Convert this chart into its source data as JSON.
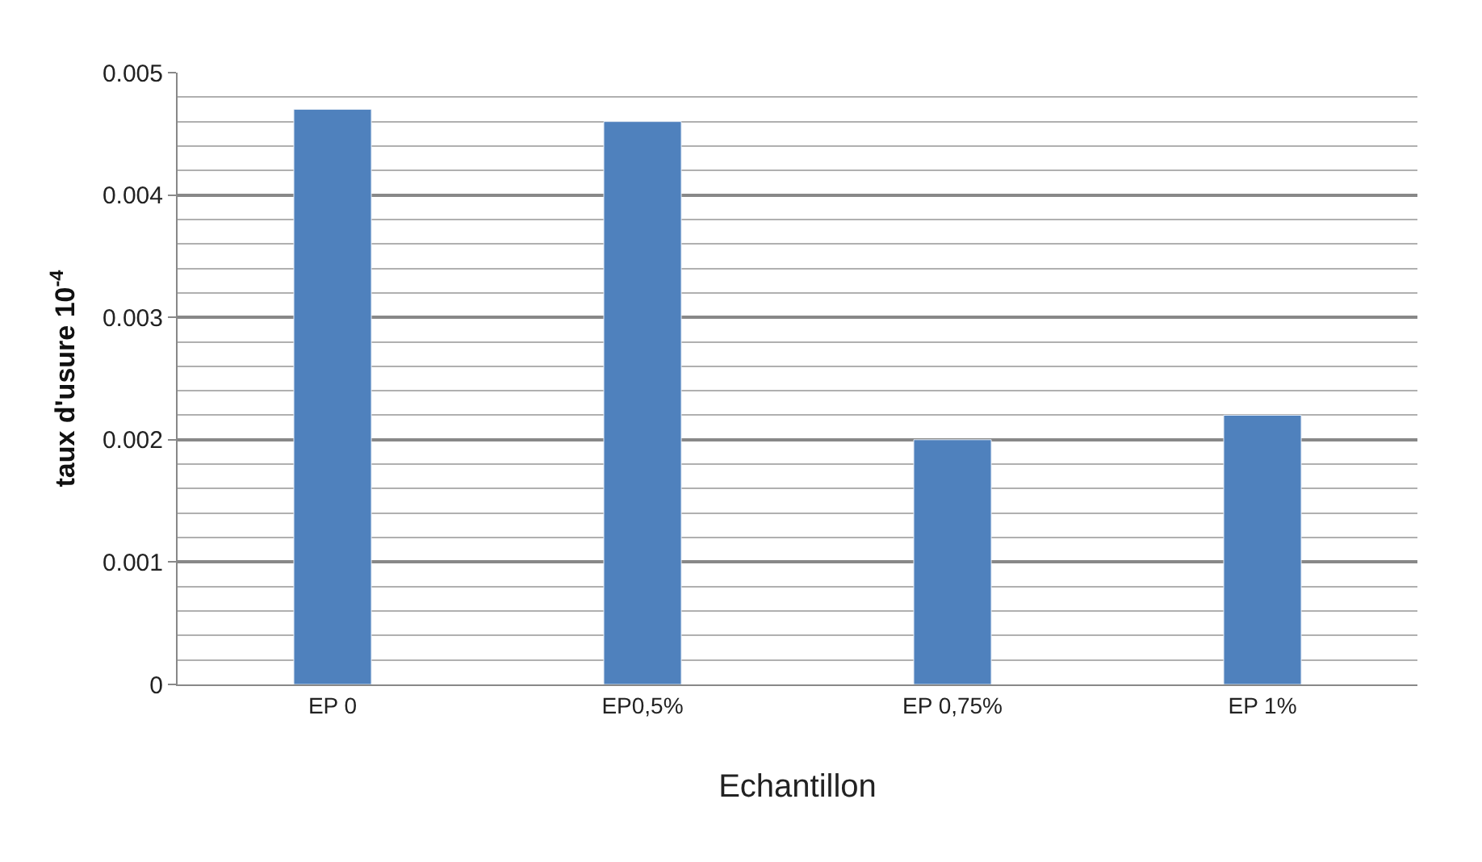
{
  "chart_data": {
    "type": "bar",
    "xlabel": "Echantillon",
    "ylabel": "taux d'usure 10$^{-4}$",
    "categories": [
      "EP 0",
      "EP0,5%",
      "EP 0,75%",
      "EP 1%"
    ],
    "values": [
      0.0047,
      0.0046,
      0.002,
      0.0022
    ],
    "color": "#4f81bd",
    "ylim": [
      0,
      0.005
    ],
    "yticks": [
      {
        "value": 0,
        "label": "0"
      },
      0.001,
      0.002,
      0.003,
      0.004,
      0.005
    ],
    "grid": "y"
  }
}
